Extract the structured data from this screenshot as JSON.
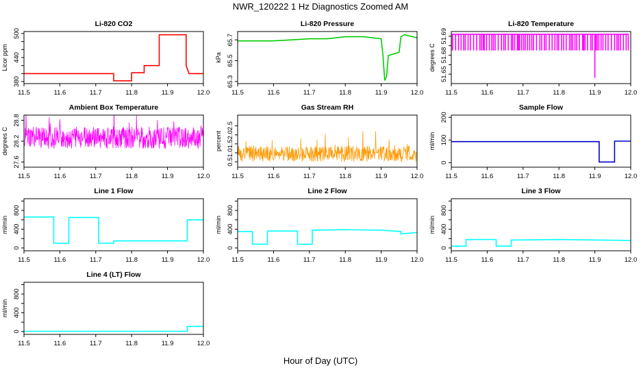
{
  "figure": {
    "title": "NWR_120222  1 Hz Diagnostics Zoomed AM",
    "xlabel": "Hour of Day (UTC)"
  },
  "chart_data": [
    {
      "id": "co2",
      "type": "line",
      "title": "Li-820 CO2",
      "ylabel": "Licor ppm",
      "color": "#ff0000",
      "xlim": [
        11.5,
        12.0
      ],
      "ylim": [
        375,
        505
      ],
      "xticks": [
        11.5,
        11.6,
        11.7,
        11.8,
        11.9,
        12.0
      ],
      "xtick_labels": [
        "11.5",
        "11.6",
        "11.7",
        "11.8",
        "11.9",
        "12.0"
      ],
      "yticks": [
        380,
        400,
        420,
        440,
        460,
        480,
        500
      ],
      "ytick_labels": [
        "380",
        "",
        "",
        "440",
        "",
        "",
        "500"
      ],
      "series": [
        {
          "name": "CO2",
          "x": [
            11.5,
            11.75,
            11.75,
            11.8,
            11.8,
            11.835,
            11.835,
            11.877,
            11.877,
            11.952,
            11.952,
            11.96,
            12.0
          ],
          "y": [
            400,
            400,
            382,
            382,
            402,
            402,
            420,
            420,
            497,
            497,
            420,
            400,
            400
          ]
        }
      ]
    },
    {
      "id": "pressure",
      "type": "line",
      "title": "Li-820 Pressure",
      "ylabel": "kPa",
      "color": "#00cc00",
      "xlim": [
        11.5,
        12.0
      ],
      "ylim": [
        65.28,
        65.78
      ],
      "xticks": [
        11.5,
        11.6,
        11.7,
        11.8,
        11.9,
        12.0
      ],
      "xtick_labels": [
        "11.5",
        "11.6",
        "11.7",
        "11.8",
        "11.9",
        "12.0"
      ],
      "yticks": [
        65.3,
        65.5,
        65.7
      ],
      "ytick_labels": [
        "65.3",
        "65.5",
        "65.7"
      ],
      "series": [
        {
          "name": "Pressure",
          "x": [
            11.5,
            11.55,
            11.6,
            11.65,
            11.7,
            11.75,
            11.8,
            11.85,
            11.9,
            11.905,
            11.91,
            11.915,
            11.92,
            11.95,
            11.955,
            11.965,
            11.975,
            12.0
          ],
          "y": [
            65.69,
            65.69,
            65.69,
            65.7,
            65.71,
            65.71,
            65.73,
            65.73,
            65.71,
            65.55,
            65.31,
            65.35,
            65.55,
            65.58,
            65.73,
            65.75,
            65.74,
            65.72
          ]
        }
      ]
    },
    {
      "id": "licor_temp",
      "type": "line",
      "title": "Li-820 Temperature",
      "ylabel": "degrees C",
      "color": "#ff00ff",
      "xlim": [
        11.5,
        12.0
      ],
      "ylim": [
        51.64,
        51.695
      ],
      "xticks": [
        11.5,
        11.6,
        11.7,
        11.8,
        11.9,
        12.0
      ],
      "xtick_labels": [
        "11.5",
        "11.6",
        "11.7",
        "11.8",
        "11.9",
        "12.0"
      ],
      "yticks": [
        51.65,
        51.66,
        51.67,
        51.68,
        51.69
      ],
      "ytick_labels": [
        "51.65",
        "",
        "51.68",
        "",
        "51.69"
      ],
      "pattern": {
        "base": 51.692,
        "low": 51.675,
        "spike_x": 11.9,
        "spike_y": 51.646
      }
    },
    {
      "id": "box_temp",
      "type": "line",
      "title": "Ambient Box Temperature",
      "ylabel": "degrees C",
      "color": "#ff00ff",
      "xlim": [
        11.5,
        12.0
      ],
      "ylim": [
        27.45,
        28.95
      ],
      "xticks": [
        11.5,
        11.6,
        11.7,
        11.8,
        11.9,
        12.0
      ],
      "xtick_labels": [
        "11.5",
        "11.6",
        "11.7",
        "11.8",
        "11.9",
        "12.0"
      ],
      "yticks": [
        27.6,
        28.2,
        28.8
      ],
      "ytick_labels": [
        "27.6",
        "28.2",
        "28.8"
      ],
      "noise": {
        "center": 28.3,
        "amp": 0.32
      }
    },
    {
      "id": "rh",
      "type": "line",
      "title": "Gas Stream RH",
      "ylabel": "percent",
      "color": "#ff9900",
      "xlim": [
        11.5,
        12.0
      ],
      "ylim": [
        0.2,
        3.1
      ],
      "xticks": [
        11.5,
        11.6,
        11.7,
        11.8,
        11.9,
        12.0
      ],
      "xtick_labels": [
        "11.5",
        "11.6",
        "11.7",
        "11.8",
        "11.9",
        "12.0"
      ],
      "yticks": [
        0.5,
        1.0,
        1.5,
        2.0,
        2.5
      ],
      "ytick_labels": [
        "0.5",
        "1.0",
        "1.5",
        "2.0",
        "2.5"
      ],
      "noise": {
        "center": 0.95,
        "amp": 0.45
      }
    },
    {
      "id": "sample_flow",
      "type": "line",
      "title": "Sample Flow",
      "ylabel": "ml/min",
      "color": "#0000cc",
      "xlim": [
        11.5,
        12.0
      ],
      "ylim": [
        -20,
        210
      ],
      "xticks": [
        11.5,
        11.6,
        11.7,
        11.8,
        11.9,
        12.0
      ],
      "xtick_labels": [
        "11.5",
        "11.6",
        "11.7",
        "11.8",
        "11.9",
        "12.0"
      ],
      "yticks": [
        0,
        100,
        200
      ],
      "ytick_labels": [
        "0",
        "100",
        "200"
      ],
      "series": [
        {
          "name": "Sample Flow",
          "x": [
            11.5,
            11.912,
            11.912,
            11.955,
            11.955,
            12.0
          ],
          "y": [
            93,
            93,
            3,
            3,
            95,
            95
          ]
        }
      ]
    },
    {
      "id": "line1",
      "type": "line",
      "title": "Line 1 Flow",
      "ylabel": "ml/min",
      "color": "#00ffff",
      "xlim": [
        11.5,
        12.0
      ],
      "ylim": [
        -60,
        1050
      ],
      "xticks": [
        11.5,
        11.6,
        11.7,
        11.8,
        11.9,
        12.0
      ],
      "xtick_labels": [
        "11.5",
        "11.6",
        "11.7",
        "11.8",
        "11.9",
        "12.0"
      ],
      "yticks": [
        0,
        200,
        400,
        600,
        800,
        1000
      ],
      "ytick_labels": [
        "0",
        "",
        "400",
        "",
        "800",
        ""
      ],
      "series": [
        {
          "name": "Line 1",
          "x": [
            11.5,
            11.583,
            11.583,
            11.625,
            11.625,
            11.708,
            11.708,
            11.75,
            11.75,
            11.955,
            11.955,
            12.0
          ],
          "y": [
            660,
            660,
            100,
            100,
            650,
            650,
            100,
            100,
            150,
            150,
            600,
            600
          ]
        }
      ]
    },
    {
      "id": "line2",
      "type": "line",
      "title": "Line 2 Flow",
      "ylabel": "ml/min",
      "color": "#00ffff",
      "xlim": [
        11.5,
        12.0
      ],
      "ylim": [
        -60,
        1050
      ],
      "xticks": [
        11.5,
        11.6,
        11.7,
        11.8,
        11.9,
        12.0
      ],
      "xtick_labels": [
        "11.5",
        "11.6",
        "11.7",
        "11.8",
        "11.9",
        "12.0"
      ],
      "yticks": [
        0,
        200,
        400,
        600,
        800,
        1000
      ],
      "ytick_labels": [
        "0",
        "",
        "400",
        "",
        "800",
        ""
      ],
      "series": [
        {
          "name": "Line 2",
          "x": [
            11.5,
            11.541,
            11.541,
            11.583,
            11.583,
            11.667,
            11.667,
            11.708,
            11.708,
            11.8,
            11.9,
            11.955,
            11.955,
            12.0
          ],
          "y": [
            350,
            350,
            80,
            80,
            360,
            360,
            80,
            80,
            380,
            390,
            380,
            350,
            300,
            330
          ]
        }
      ]
    },
    {
      "id": "line3",
      "type": "line",
      "title": "Line 3 Flow",
      "ylabel": "ml/min",
      "color": "#00ffff",
      "xlim": [
        11.5,
        12.0
      ],
      "ylim": [
        -60,
        1050
      ],
      "xticks": [
        11.5,
        11.6,
        11.7,
        11.8,
        11.9,
        12.0
      ],
      "xtick_labels": [
        "11.5",
        "11.6",
        "11.7",
        "11.8",
        "11.9",
        "12.0"
      ],
      "yticks": [
        0,
        200,
        400,
        600,
        800,
        1000
      ],
      "ytick_labels": [
        "0",
        "",
        "400",
        "",
        "800",
        ""
      ],
      "series": [
        {
          "name": "Line 3",
          "x": [
            11.5,
            11.541,
            11.541,
            11.625,
            11.625,
            11.667,
            11.667,
            11.8,
            12.0
          ],
          "y": [
            40,
            40,
            180,
            180,
            40,
            40,
            170,
            180,
            160
          ]
        }
      ]
    },
    {
      "id": "line4",
      "type": "line",
      "title": "Line 4 (LT) Flow",
      "ylabel": "ml/min",
      "color": "#00ffff",
      "xlim": [
        11.5,
        12.0
      ],
      "ylim": [
        -60,
        1050
      ],
      "xticks": [
        11.5,
        11.6,
        11.7,
        11.8,
        11.9,
        12.0
      ],
      "xtick_labels": [
        "11.5",
        "11.6",
        "11.7",
        "11.8",
        "11.9",
        "12.0"
      ],
      "yticks": [
        0,
        200,
        400,
        600,
        800,
        1000
      ],
      "ytick_labels": [
        "0",
        "",
        "400",
        "",
        "800",
        ""
      ],
      "series": [
        {
          "name": "Line 4",
          "x": [
            11.5,
            11.955,
            11.955,
            12.0
          ],
          "y": [
            5,
            5,
            110,
            110
          ]
        }
      ]
    }
  ]
}
